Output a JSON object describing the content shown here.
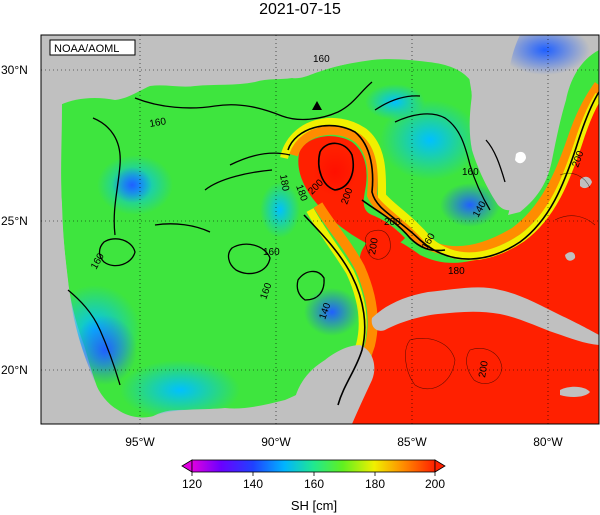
{
  "title": "2021-07-15",
  "credit": "NOAA/AOML",
  "lat_labels": [
    "30°N",
    "25°N",
    "20°N"
  ],
  "lon_labels": [
    "95°W",
    "90°W",
    "85°W",
    "80°W"
  ],
  "colorbar": {
    "ticks": [
      "120",
      "140",
      "160",
      "180",
      "200"
    ],
    "label": "SH [cm]",
    "range": [
      120,
      200
    ]
  },
  "contour_labels": [
    "160",
    "160",
    "160",
    "160",
    "160",
    "160",
    "180",
    "180",
    "200",
    "200",
    "200",
    "200",
    "140",
    "140",
    "160",
    "180",
    "200",
    "200"
  ],
  "colors": {
    "land": "#c0c0c0",
    "red": "#ff2000",
    "orange": "#ff8c00",
    "yellow": "#f0f000",
    "green": "#3ee53e",
    "cyan": "#1ec8ff",
    "blue": "#2060ff"
  },
  "marker": "triangle"
}
